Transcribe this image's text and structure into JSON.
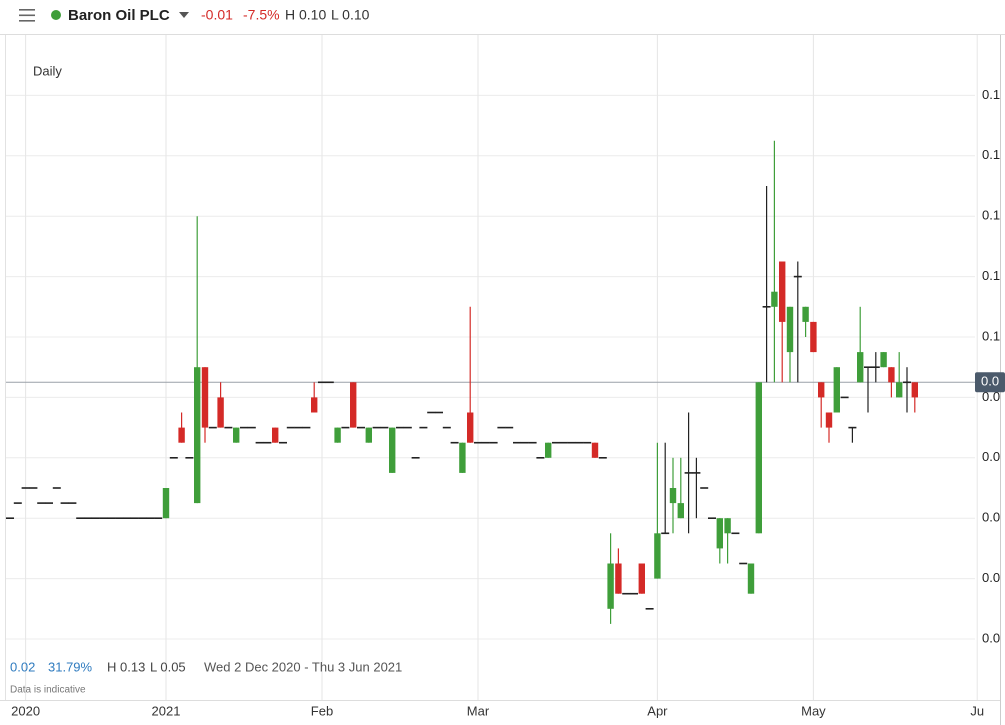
{
  "header": {
    "name": "Baron Oil PLC",
    "change": "-0.01",
    "change_percent": "-7.5%",
    "high": "H 0.10",
    "low": "L 0.10"
  },
  "footer": {
    "change": "0.02",
    "change_percent": "31.79%",
    "high": "H 0.13",
    "low": "L 0.05",
    "range": "Wed 2 Dec 2020 - Thu 3 Jun 2021",
    "note": "Data is indicative"
  },
  "chart_data": {
    "type": "candlestick",
    "interval": "Daily",
    "up_color": "#3f9e3a",
    "down_color": "#d42a27",
    "neutral_color": "#222222",
    "grid": true,
    "ylim": [
      0.04,
      0.15
    ],
    "yticks": [
      {
        "value": 0.05,
        "label": "0.0"
      },
      {
        "value": 0.06,
        "label": "0.0"
      },
      {
        "value": 0.07,
        "label": "0.0"
      },
      {
        "value": 0.08,
        "label": "0.0"
      },
      {
        "value": 0.09,
        "label": "0.0"
      },
      {
        "value": 0.1,
        "label": "0.1"
      },
      {
        "value": 0.11,
        "label": "0.1"
      },
      {
        "value": 0.12,
        "label": "0.1"
      },
      {
        "value": 0.13,
        "label": "0.1"
      },
      {
        "value": 0.14,
        "label": "0.1"
      }
    ],
    "last_price": {
      "value": 0.0925,
      "label": "0.0"
    },
    "categories": [
      null,
      null,
      "2020",
      null,
      null,
      null,
      null,
      null,
      null,
      null,
      null,
      null,
      null,
      null,
      null,
      null,
      null,
      null,
      null,
      null,
      "2021",
      null,
      null,
      null,
      null,
      null,
      null,
      null,
      null,
      null,
      null,
      null,
      null,
      null,
      null,
      null,
      null,
      null,
      null,
      null,
      "Feb",
      null,
      null,
      null,
      null,
      null,
      null,
      null,
      null,
      null,
      null,
      null,
      null,
      null,
      null,
      null,
      null,
      null,
      null,
      null,
      "Mar",
      null,
      null,
      null,
      null,
      null,
      null,
      null,
      null,
      null,
      null,
      null,
      null,
      null,
      null,
      null,
      null,
      null,
      null,
      null,
      null,
      null,
      null,
      "Apr",
      null,
      null,
      null,
      null,
      null,
      null,
      null,
      null,
      null,
      null,
      null,
      null,
      null,
      null,
      null,
      null,
      null,
      null,
      null,
      "May",
      null,
      null,
      null,
      null,
      null,
      null,
      null,
      null,
      null,
      null,
      null,
      null,
      null,
      null,
      null,
      null,
      null,
      null,
      null,
      null,
      "Ju"
    ],
    "open": [
      0.07,
      0.0725,
      0.075,
      0.075,
      0.0725,
      0.0725,
      0.075,
      0.0725,
      0.0725,
      0.07,
      0.07,
      0.07,
      0.07,
      0.07,
      0.07,
      0.07,
      0.07,
      0.07,
      0.07,
      0.07,
      0.07,
      0.08,
      0.085,
      0.08,
      0.0725,
      0.095,
      0.085,
      0.09,
      0.085,
      0.0825,
      0.085,
      0.085,
      0.0825,
      0.0825,
      0.085,
      0.0825,
      0.085,
      0.085,
      0.085,
      0.09,
      0.0925,
      0.0925,
      0.0825,
      0.085,
      0.0925,
      0.085,
      0.0825,
      0.085,
      0.085,
      0.0775,
      0.085,
      0.085,
      0.08,
      0.085,
      0.0875,
      0.0875,
      0.085,
      0.0825,
      0.0775,
      0.0875,
      0.0825,
      0.0825,
      0.0825,
      0.085,
      0.085,
      0.0825,
      0.0825,
      0.0825,
      0.08,
      0.08,
      0.0825,
      0.0825,
      0.0825,
      0.0825,
      0.0825,
      0.0825,
      0.08,
      0.055,
      0.0625,
      0.0575,
      0.0575,
      0.0625,
      0.055,
      0.06,
      0.0675,
      0.0725,
      0.07,
      0.0775,
      0.0775,
      0.075,
      0.07,
      0.065,
      0.0675,
      0.0675,
      0.0625,
      0.0575,
      0.0675,
      0.105,
      0.105,
      0.1125,
      0.0975,
      0.11,
      0.1025,
      0.1025,
      0.0925,
      0.0875,
      0.0875,
      0.09,
      0.085,
      0.0925,
      0.095,
      0.095,
      0.095,
      0.095,
      0.09,
      0.0925,
      0.0925,
      null,
      null,
      null,
      null,
      null,
      null,
      null,
      null
    ],
    "high": [
      0.07,
      0.0725,
      0.075,
      0.075,
      0.0725,
      0.0725,
      0.075,
      0.0725,
      0.0725,
      0.07,
      0.07,
      0.07,
      0.07,
      0.07,
      0.07,
      0.07,
      0.07,
      0.07,
      0.07,
      0.07,
      0.075,
      0.08,
      0.0875,
      0.08,
      0.12,
      0.095,
      0.085,
      0.0925,
      0.085,
      0.085,
      0.085,
      0.085,
      0.0825,
      0.0825,
      0.085,
      0.0825,
      0.085,
      0.085,
      0.085,
      0.0925,
      0.0925,
      0.0925,
      0.085,
      0.085,
      0.0925,
      0.085,
      0.085,
      0.085,
      0.085,
      0.085,
      0.085,
      0.085,
      0.08,
      0.085,
      0.0875,
      0.0875,
      0.085,
      0.0825,
      0.0825,
      0.105,
      0.0825,
      0.0825,
      0.0825,
      0.085,
      0.085,
      0.0825,
      0.0825,
      0.0825,
      0.08,
      0.0825,
      0.0825,
      0.0825,
      0.0825,
      0.0825,
      0.0825,
      0.0825,
      0.08,
      0.0675,
      0.065,
      0.0575,
      0.0575,
      0.0625,
      0.055,
      0.0825,
      0.0825,
      0.08,
      0.08,
      0.0875,
      0.08,
      0.075,
      0.07,
      0.07,
      0.07,
      0.0675,
      0.0625,
      0.0625,
      0.0925,
      0.125,
      0.1325,
      0.1125,
      0.105,
      0.1125,
      0.105,
      0.1025,
      0.0925,
      0.0875,
      0.095,
      0.09,
      0.085,
      0.105,
      0.095,
      0.0975,
      0.0975,
      0.095,
      0.0975,
      0.095,
      0.0925,
      null,
      null,
      null,
      null,
      null,
      null,
      null,
      null
    ],
    "low": [
      0.07,
      0.0725,
      0.075,
      0.075,
      0.0725,
      0.0725,
      0.075,
      0.0725,
      0.0725,
      0.07,
      0.07,
      0.07,
      0.07,
      0.07,
      0.07,
      0.07,
      0.07,
      0.07,
      0.07,
      0.07,
      0.07,
      0.08,
      0.0825,
      0.08,
      0.0725,
      0.0825,
      0.085,
      0.085,
      0.085,
      0.0825,
      0.085,
      0.085,
      0.0825,
      0.0825,
      0.0825,
      0.0825,
      0.085,
      0.085,
      0.085,
      0.0875,
      0.0925,
      0.0925,
      0.0825,
      0.085,
      0.085,
      0.085,
      0.0825,
      0.085,
      0.085,
      0.0775,
      0.085,
      0.085,
      0.08,
      0.085,
      0.0875,
      0.0875,
      0.085,
      0.0825,
      0.0775,
      0.0825,
      0.0825,
      0.0825,
      0.0825,
      0.085,
      0.085,
      0.0825,
      0.0825,
      0.0825,
      0.08,
      0.08,
      0.0825,
      0.0825,
      0.0825,
      0.0825,
      0.0825,
      0.08,
      0.08,
      0.0525,
      0.0575,
      0.0575,
      0.0575,
      0.0575,
      0.055,
      0.06,
      0.0675,
      0.0675,
      0.07,
      0.0675,
      0.07,
      0.075,
      0.07,
      0.0625,
      0.0625,
      0.0675,
      0.0625,
      0.0575,
      0.0675,
      0.0925,
      0.0925,
      0.0925,
      0.0925,
      0.0925,
      0.1,
      0.0975,
      0.085,
      0.0825,
      0.0875,
      0.09,
      0.0825,
      0.0925,
      0.0875,
      0.0925,
      0.095,
      0.09,
      0.09,
      0.0875,
      0.0875,
      null,
      null,
      null,
      null,
      null,
      null,
      null,
      null
    ],
    "close": [
      0.07,
      0.0725,
      0.075,
      0.075,
      0.0725,
      0.0725,
      0.075,
      0.0725,
      0.0725,
      0.07,
      0.07,
      0.07,
      0.07,
      0.07,
      0.07,
      0.07,
      0.07,
      0.07,
      0.07,
      0.07,
      0.075,
      0.08,
      0.0825,
      0.08,
      0.095,
      0.085,
      0.085,
      0.085,
      0.085,
      0.085,
      0.085,
      0.085,
      0.0825,
      0.0825,
      0.0825,
      0.0825,
      0.085,
      0.085,
      0.085,
      0.0875,
      0.0925,
      0.0925,
      0.085,
      0.085,
      0.085,
      0.085,
      0.085,
      0.085,
      0.085,
      0.085,
      0.085,
      0.085,
      0.08,
      0.085,
      0.0875,
      0.0875,
      0.085,
      0.0825,
      0.0825,
      0.0825,
      0.0825,
      0.0825,
      0.0825,
      0.085,
      0.085,
      0.0825,
      0.0825,
      0.0825,
      0.08,
      0.0825,
      0.0825,
      0.0825,
      0.0825,
      0.0825,
      0.0825,
      0.08,
      0.08,
      0.0625,
      0.0575,
      0.0575,
      0.0575,
      0.0575,
      0.055,
      0.0675,
      0.0675,
      0.075,
      0.0725,
      0.0775,
      0.0775,
      0.075,
      0.07,
      0.07,
      0.07,
      0.0675,
      0.0625,
      0.0625,
      0.0925,
      0.105,
      0.1075,
      0.1025,
      0.105,
      0.11,
      0.105,
      0.0975,
      0.09,
      0.085,
      0.095,
      0.09,
      0.085,
      0.0975,
      0.095,
      0.095,
      0.0975,
      0.0925,
      0.0925,
      0.0925,
      0.09,
      null,
      null,
      null,
      null,
      null,
      null,
      null,
      null
    ]
  }
}
